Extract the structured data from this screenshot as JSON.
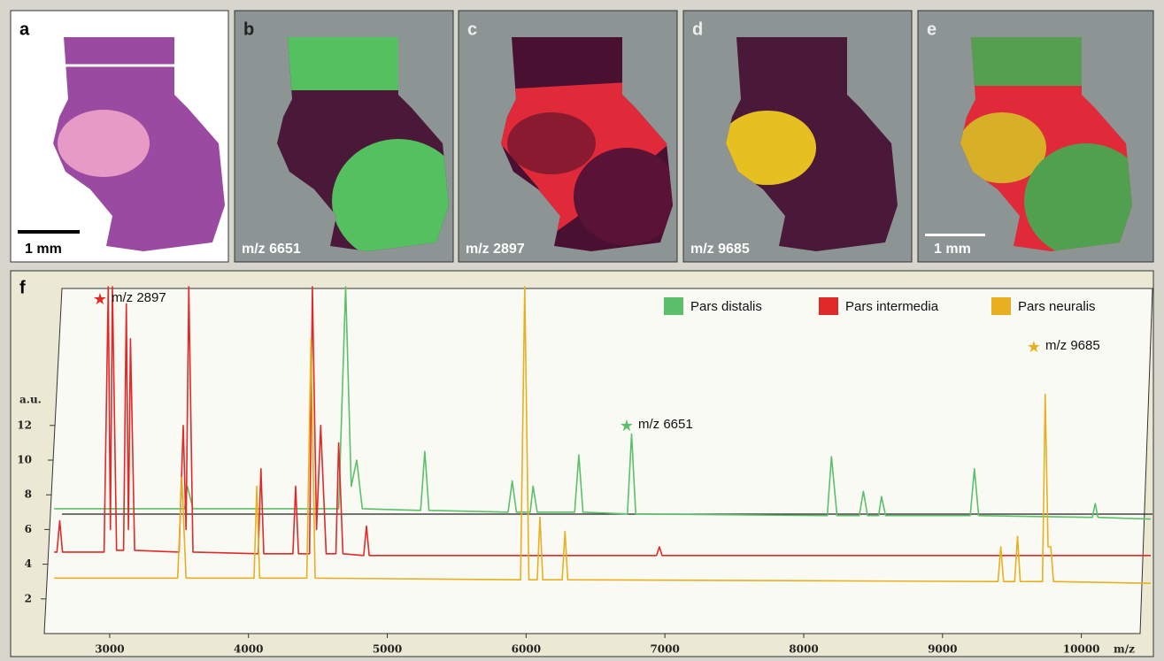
{
  "figure": {
    "panels": [
      {
        "label": "a",
        "caption": "1 mm"
      },
      {
        "label": "b",
        "caption": "m/z 6651"
      },
      {
        "label": "c",
        "caption": "m/z 2897"
      },
      {
        "label": "d",
        "caption": "m/z 9685"
      },
      {
        "label": "e",
        "caption": "1 mm"
      }
    ]
  },
  "chart_data": {
    "type": "line",
    "panel_label": "f",
    "ylabel": "a.u.",
    "xlabel": "m/z",
    "xlim": [
      2500,
      10500
    ],
    "xticks": [
      3000,
      4000,
      5000,
      6000,
      7000,
      8000,
      9000,
      10000
    ],
    "ylim": [
      0,
      20
    ],
    "yticks": [
      2,
      4,
      6,
      8,
      10,
      12
    ],
    "legend": "top-right",
    "annotations": [
      "m/z 2897",
      "m/z 6651",
      "m/z 9685"
    ],
    "series": [
      {
        "name": "Pars distalis",
        "color": "#5cc06a",
        "x": [
          2600,
          3540,
          3560,
          3600,
          4650,
          4700,
          4740,
          4780,
          4820,
          5240,
          5270,
          5300,
          5870,
          5900,
          5930,
          6030,
          6050,
          6080,
          6350,
          6380,
          6410,
          6730,
          6760,
          6790,
          8170,
          8200,
          8240,
          8400,
          8430,
          8460,
          8540,
          8560,
          8590,
          9200,
          9230,
          9260,
          10080,
          10100,
          10120,
          10500
        ],
        "values": [
          7.2,
          7.2,
          8.5,
          7.2,
          7.2,
          20,
          8.5,
          10,
          7.2,
          7.1,
          10.5,
          7.1,
          7.0,
          8.8,
          7.0,
          7.0,
          8.5,
          7.0,
          7.0,
          10.3,
          7.0,
          6.9,
          11.5,
          6.9,
          6.8,
          10.2,
          6.8,
          6.8,
          8.2,
          6.8,
          6.8,
          7.9,
          6.8,
          6.8,
          9.5,
          6.8,
          6.7,
          7.5,
          6.7,
          6.6
        ]
      },
      {
        "name": "Pars intermedia",
        "color": "#e02a2a",
        "x": [
          2600,
          2620,
          2640,
          2660,
          2960,
          2990,
          3005,
          3020,
          3050,
          3100,
          3120,
          3135,
          3150,
          3180,
          3500,
          3530,
          3550,
          3570,
          3600,
          4070,
          4090,
          4110,
          4320,
          4340,
          4360,
          4440,
          4460,
          4490,
          4520,
          4560,
          4630,
          4650,
          4680,
          4830,
          4850,
          4870,
          6940,
          6960,
          6980,
          10500
        ],
        "values": [
          4.7,
          4.7,
          6.5,
          4.7,
          4.7,
          20,
          6,
          20,
          4.8,
          4.8,
          19,
          6,
          17,
          4.8,
          4.7,
          12,
          6,
          20,
          4.7,
          4.6,
          9.5,
          4.6,
          4.6,
          8.5,
          4.6,
          4.6,
          20,
          6,
          12,
          4.6,
          4.6,
          11,
          4.6,
          4.5,
          6.2,
          4.5,
          4.5,
          5,
          4.5,
          4.5
        ]
      },
      {
        "name": "Pars neuralis",
        "color": "#e8b020",
        "x": [
          2600,
          3490,
          3520,
          3550,
          4040,
          4060,
          4080,
          4420,
          4450,
          4480,
          5960,
          5990,
          6020,
          6080,
          6100,
          6120,
          6260,
          6280,
          6300,
          9400,
          9420,
          9440,
          9520,
          9540,
          9560,
          9720,
          9740,
          9760,
          9780,
          9800,
          10500
        ],
        "values": [
          3.2,
          3.2,
          9,
          3.2,
          3.2,
          8.5,
          3.2,
          3.2,
          17,
          3.2,
          3.1,
          20,
          3.1,
          3.1,
          6.7,
          3.1,
          3.1,
          5.9,
          3.1,
          3.0,
          5,
          3.0,
          3.0,
          5.6,
          3.0,
          3.0,
          13.8,
          5,
          5,
          3.0,
          2.9
        ]
      }
    ]
  }
}
